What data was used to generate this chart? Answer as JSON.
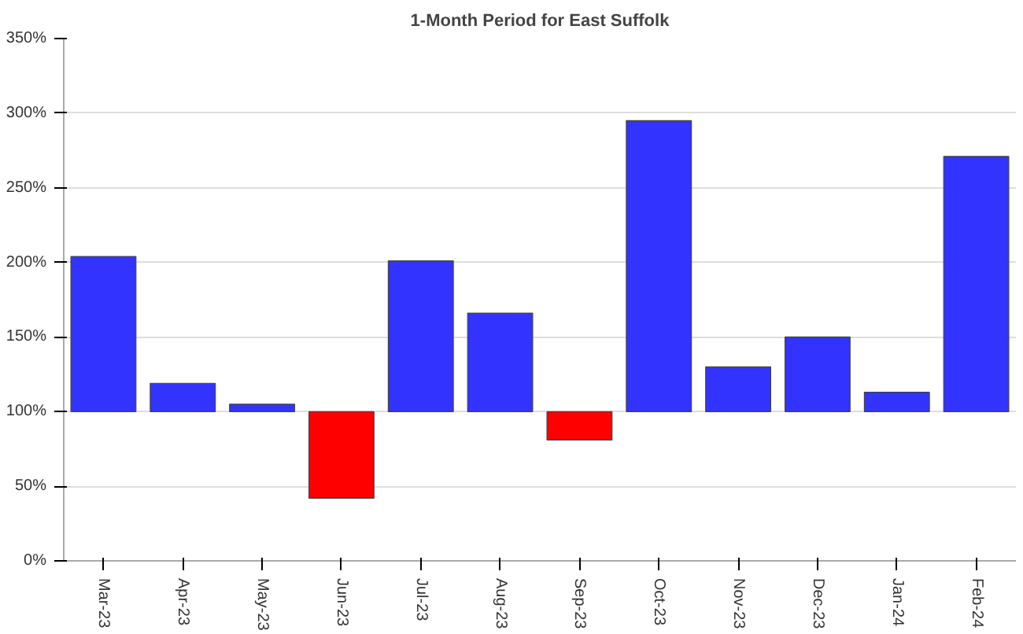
{
  "chart_data": {
    "type": "bar",
    "title": "1-Month Period for East Suffolk",
    "categories": [
      "Mar-23",
      "Apr-23",
      "May-23",
      "Jun-23",
      "Jul-23",
      "Aug-23",
      "Sep-23",
      "Oct-23",
      "Nov-23",
      "Dec-23",
      "Jan-24",
      "Feb-24"
    ],
    "values": [
      104,
      19,
      5,
      -58,
      101,
      66,
      -19,
      195,
      30,
      50,
      13,
      171
    ],
    "base": [
      100,
      100,
      100,
      100,
      100,
      100,
      100,
      100,
      100,
      100,
      100,
      100
    ],
    "colors": [
      "#3333ff",
      "#3333ff",
      "#3333ff",
      "#ff0000",
      "#3333ff",
      "#3333ff",
      "#ff0000",
      "#3333ff",
      "#3333ff",
      "#3333ff",
      "#3333ff",
      "#3333ff"
    ],
    "ylim": [
      0,
      350
    ],
    "yticks": [
      {
        "value": 0,
        "label": "0%"
      },
      {
        "value": 50,
        "label": "50%"
      },
      {
        "value": 100,
        "label": "100%"
      },
      {
        "value": 150,
        "label": "150%"
      },
      {
        "value": 200,
        "label": "200%"
      },
      {
        "value": 250,
        "label": "250%"
      },
      {
        "value": 300,
        "label": "300%"
      },
      {
        "value": 350,
        "label": "350%"
      }
    ],
    "grid": "y"
  }
}
